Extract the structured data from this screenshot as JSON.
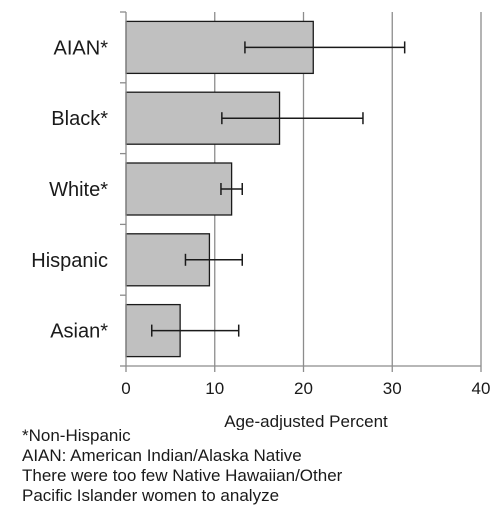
{
  "chart_data": {
    "type": "bar",
    "orientation": "horizontal",
    "categories": [
      "AIAN*",
      "Black*",
      "White*",
      "Hispanic",
      "Asian*"
    ],
    "values": [
      21.1,
      17.3,
      11.9,
      9.4,
      6.1
    ],
    "error_low": [
      13.4,
      10.8,
      10.7,
      6.7,
      2.9
    ],
    "error_high": [
      31.4,
      26.7,
      13.1,
      13.1,
      12.7
    ],
    "xlabel": "Age-adjusted Percent",
    "xlim": [
      0,
      40
    ],
    "xticks": [
      0,
      10,
      20,
      30,
      40
    ],
    "grid": "vertical",
    "bar_color": "#c0c0c0"
  },
  "notes": [
    "*Non-Hispanic",
    "AIAN: American Indian/Alaska Native",
    "There were too few Native Hawaiian/Other",
    "Pacific Islander women to analyze"
  ]
}
